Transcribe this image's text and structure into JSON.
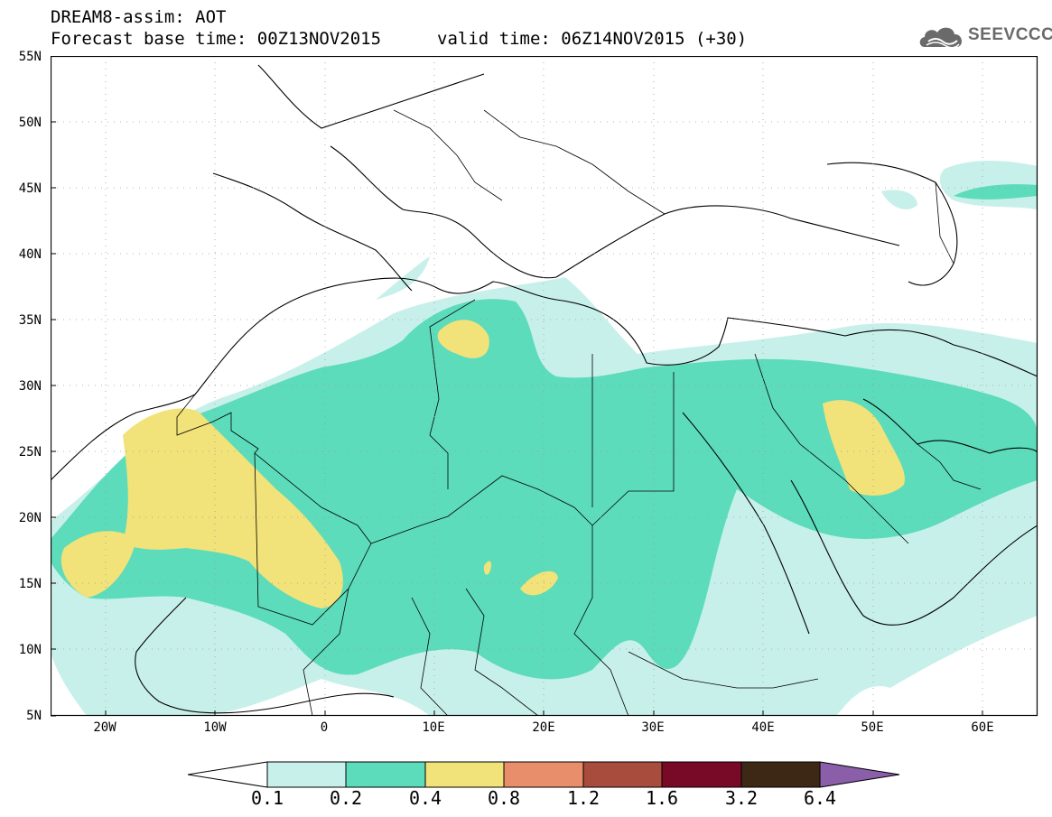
{
  "header": {
    "title": "DREAM8-assim: AOT",
    "base_time": "Forecast base time: 00Z13NOV2015",
    "valid_time": "valid time: 06Z14NOV2015 (+30)"
  },
  "logo": {
    "text": "SEEVCCC",
    "icon": "cloud-icon"
  },
  "map": {
    "lat_labels": [
      "55N",
      "50N",
      "45N",
      "40N",
      "35N",
      "30N",
      "25N",
      "20N",
      "15N",
      "10N",
      "5N"
    ],
    "lon_labels": [
      "20W",
      "10W",
      "0",
      "10E",
      "20E",
      "30E",
      "40E",
      "50E",
      "60E"
    ]
  },
  "legend": {
    "colors": [
      "#c8f0ea",
      "#5cdcba",
      "#f2e27a",
      "#e98e6a",
      "#a84c3e",
      "#780a28",
      "#3c2814"
    ],
    "low_arrow_color": "#ffffff",
    "high_arrow_color": "#8a5ea8",
    "labels": [
      "0.1",
      "0.2",
      "0.4",
      "0.8",
      "1.2",
      "1.6",
      "3.2",
      "6.4"
    ]
  }
}
